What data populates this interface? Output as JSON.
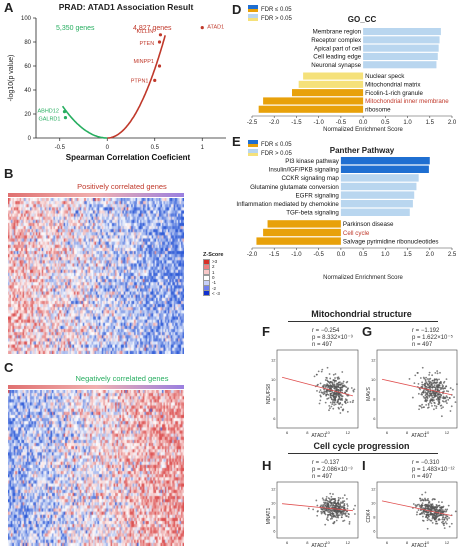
{
  "panels": {
    "A": {
      "letter": "A",
      "title": "PRAD: ATAD1 Association Result",
      "neg_count": "5,350 genes",
      "pos_count": "4,827 genes",
      "xlabel": "Spearman Correlation Coeficient",
      "ylabel": "-log10(p value)",
      "x_ticks": [
        "-0.5",
        "0",
        "0.5",
        "1"
      ],
      "y_ticks": [
        "0",
        "20",
        "40",
        "60",
        "80",
        "100"
      ],
      "gene_labels": [
        {
          "text": "KILLIN",
          "color": "#c0392b"
        },
        {
          "text": "PTEN",
          "color": "#c0392b"
        },
        {
          "text": "ATAD1",
          "color": "#c0392b"
        },
        {
          "text": "MINPP1",
          "color": "#c0392b"
        },
        {
          "text": "PTPN1",
          "color": "#c0392b"
        },
        {
          "text": "ABHD12",
          "color": "#27ae60"
        },
        {
          "text": "GALRD1",
          "color": "#27ae60"
        }
      ]
    },
    "B": {
      "letter": "B",
      "title": "Positively correlated genes"
    },
    "C": {
      "letter": "C",
      "title": "Negatively correlated genes"
    },
    "zscore": {
      "title": "Z-Score",
      "levels": [
        ">3",
        "2",
        "1",
        "0",
        "-1",
        "-2",
        "< -3"
      ]
    },
    "D": {
      "letter": "D",
      "title": "GO_CC",
      "legend": [
        "FDR ≤ 0.05",
        "FDR > 0.05"
      ],
      "xlabel": "Normalized Enrichment Score",
      "x_ticks": [
        "-2.5",
        "-2.0",
        "-1.5",
        "-1.0",
        "-0.5",
        "0.0",
        "0.5",
        "1.0",
        "1.5",
        "2.0"
      ]
    },
    "E": {
      "letter": "E",
      "title": "Panther Pathway",
      "legend": [
        "FDR ≤ 0.05",
        "FDR > 0.05"
      ],
      "xlabel": "Normalized Enrichment Score",
      "x_ticks": [
        "-2.0",
        "-1.5",
        "-1.0",
        "-0.5",
        "0.0",
        "0.5",
        "1.0",
        "1.5",
        "2.0",
        "2.5"
      ]
    },
    "mito": {
      "title": "Mitochondrial structure",
      "F": {
        "letter": "F",
        "r": "r = −0.254",
        "p": "p = 8.332×10⁻⁹",
        "n": "n = 497",
        "ylabel": "NDUFS8",
        "xlabel": "ATAD1"
      },
      "G": {
        "letter": "G",
        "r": "r = −1.192",
        "p": "p = 1.622×10⁻⁵",
        "n": "n = 497",
        "ylabel": "MAVS",
        "xlabel": "ATAD1"
      }
    },
    "cell": {
      "title": "Cell cycle progression",
      "H": {
        "letter": "H",
        "r": "r = −0.137",
        "p": "p = 2.086×10⁻³",
        "n": "n = 497",
        "ylabel": "MNAT1",
        "xlabel": "ATAD1"
      },
      "I": {
        "letter": "I",
        "r": "r = −0.310",
        "p": "p = 1.483×10⁻¹²",
        "n": "n = 497",
        "ylabel": "CDK4",
        "xlabel": "ATAD1"
      }
    },
    "scatter_ticks": {
      "x": [
        "6",
        "8",
        "10",
        "12"
      ],
      "y": [
        "6",
        "8",
        "10",
        "12"
      ]
    }
  },
  "chart_data": [
    {
      "type": "scatter",
      "panel": "A",
      "title": "PRAD: ATAD1 Association Result",
      "xlabel": "Spearman Correlation Coeficient",
      "ylabel": "-log10(p value)",
      "xlim": [
        -0.75,
        1.25
      ],
      "ylim": [
        0,
        100
      ],
      "points": [
        {
          "x": 1.0,
          "y": 92,
          "label": "ATAD1"
        },
        {
          "x": 0.56,
          "y": 86,
          "label": "KILLIN"
        },
        {
          "x": 0.55,
          "y": 80,
          "label": "PTEN"
        },
        {
          "x": 0.55,
          "y": 60,
          "label": "MINPP1"
        },
        {
          "x": 0.5,
          "y": 48,
          "label": "PTPN1"
        },
        {
          "x": -0.45,
          "y": 22,
          "label": "ABHD12"
        },
        {
          "x": -0.44,
          "y": 17,
          "label": "GALRD1"
        }
      ]
    },
    {
      "type": "bar",
      "panel": "D",
      "title": "GO_CC",
      "xlabel": "Normalized Enrichment Score",
      "xlim": [
        -2.5,
        2.0
      ],
      "categories": [
        "Membrane region",
        "Receptor complex",
        "Apical part of cell",
        "Cell leading edge",
        "Neuronal synapse",
        "Nuclear speck",
        "Mitochondrial matrix",
        "Ficolin-1-rich granule",
        "Mitochondrial inner membrane",
        "ribosome"
      ],
      "values": [
        1.75,
        1.72,
        1.7,
        1.68,
        1.65,
        -1.35,
        -1.45,
        -1.6,
        -2.25,
        -2.35
      ],
      "fdr_le_005": [
        false,
        false,
        false,
        false,
        false,
        false,
        false,
        true,
        true,
        true
      ],
      "highlight": [
        "",
        "",
        "",
        "",
        "",
        "",
        "",
        "",
        "red",
        ""
      ]
    },
    {
      "type": "bar",
      "panel": "E",
      "title": "Panther Pathway",
      "xlabel": "Normalized Enrichment Score",
      "xlim": [
        -2.0,
        2.5
      ],
      "categories": [
        "PI3 kinase pathway",
        "Insulin/IGF/PKB signaling",
        "CCKR signaling map",
        "Glutamine glutamate conversion",
        "EGFR signaling",
        "Inflammation mediated by chemokine",
        "TGF-beta signaling",
        "Parkinson disease",
        "Cell cycle",
        "Salvage pyrimidine ribonucleotides"
      ],
      "values": [
        2.0,
        1.98,
        1.75,
        1.7,
        1.65,
        1.62,
        1.55,
        -1.65,
        -1.75,
        -1.9
      ],
      "fdr_le_005": [
        true,
        true,
        false,
        false,
        false,
        false,
        false,
        true,
        true,
        true
      ],
      "highlight": [
        "",
        "",
        "",
        "",
        "",
        "",
        "",
        "",
        "red",
        ""
      ]
    },
    {
      "type": "scatter",
      "panel": "F",
      "xlabel": "ATAD1",
      "ylabel": "NDUFS8",
      "xlim": [
        5,
        13
      ],
      "ylim": [
        5,
        13
      ],
      "trend": {
        "x": [
          5.5,
          12.5
        ],
        "y": [
          10.2,
          8.3
        ]
      }
    },
    {
      "type": "scatter",
      "panel": "G",
      "xlabel": "ATAD1",
      "ylabel": "MAVS",
      "xlim": [
        5,
        13
      ],
      "ylim": [
        5,
        13
      ],
      "trend": {
        "x": [
          5.5,
          12.5
        ],
        "y": [
          10.0,
          8.4
        ]
      }
    },
    {
      "type": "scatter",
      "panel": "H",
      "xlabel": "ATAD1",
      "ylabel": "MNAT1",
      "xlim": [
        5,
        13
      ],
      "ylim": [
        5,
        13
      ],
      "trend": {
        "x": [
          5.5,
          12.5
        ],
        "y": [
          9.9,
          8.9
        ]
      }
    },
    {
      "type": "scatter",
      "panel": "I",
      "xlabel": "ATAD1",
      "ylabel": "CDK4",
      "xlim": [
        5,
        13
      ],
      "ylim": [
        5,
        13
      ],
      "trend": {
        "x": [
          5.5,
          12.5
        ],
        "y": [
          10.3,
          8.2
        ]
      }
    }
  ],
  "colors": {
    "fdr_sig_pos": "#1f6fd1",
    "fdr_ns_pos": "#b9d6ef",
    "fdr_sig_neg": "#e8a10a",
    "fdr_ns_neg": "#f5e17a",
    "red_label": "#c0392b",
    "green_label": "#27ae60"
  }
}
